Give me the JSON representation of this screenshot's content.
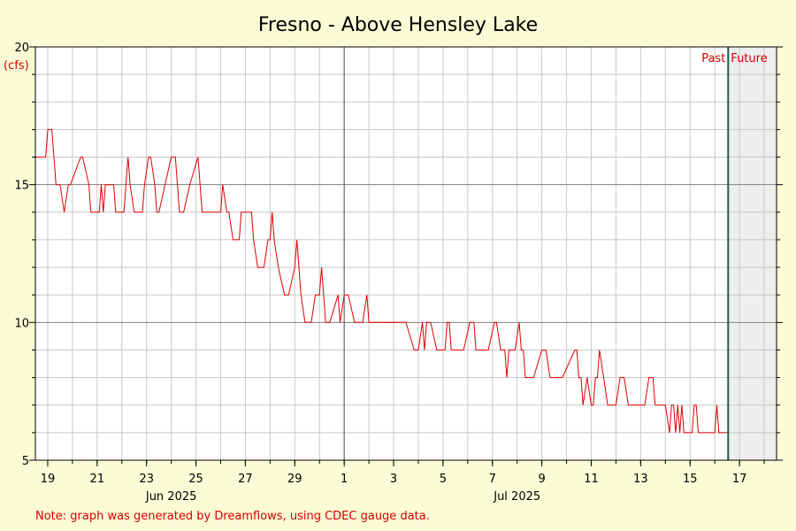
{
  "chart_data": {
    "type": "line",
    "title": "Fresno - Above Hensley Lake",
    "ylabel": "(cfs)",
    "ylim": [
      5,
      20
    ],
    "yticks": [
      5,
      10,
      15,
      20
    ],
    "xlim": [
      "2025-06-18T12:00",
      "2025-07-18T12:00"
    ],
    "xticks": [
      {
        "date": "2025-06-19",
        "label": "19"
      },
      {
        "date": "2025-06-21",
        "label": "21"
      },
      {
        "date": "2025-06-23",
        "label": "23"
      },
      {
        "date": "2025-06-25",
        "label": "25"
      },
      {
        "date": "2025-06-27",
        "label": "27"
      },
      {
        "date": "2025-06-29",
        "label": "29"
      },
      {
        "date": "2025-07-01",
        "label": "1"
      },
      {
        "date": "2025-07-03",
        "label": "3"
      },
      {
        "date": "2025-07-05",
        "label": "5"
      },
      {
        "date": "2025-07-07",
        "label": "7"
      },
      {
        "date": "2025-07-09",
        "label": "9"
      },
      {
        "date": "2025-07-11",
        "label": "11"
      },
      {
        "date": "2025-07-13",
        "label": "13"
      },
      {
        "date": "2025-07-15",
        "label": "15"
      },
      {
        "date": "2025-07-17",
        "label": "17"
      }
    ],
    "month_labels": [
      {
        "date": "2025-06-24",
        "label": "Jun 2025"
      },
      {
        "date": "2025-07-08",
        "label": "Jul 2025"
      }
    ],
    "month_boundary": "2025-06-30T24:00",
    "now": "2025-07-16T13:00",
    "past_label": "Past",
    "future_label": "Future",
    "note": "Note: graph was generated by Dreamflows, using CDEC gauge data.",
    "grid": true,
    "colors": {
      "line": "#dd0000",
      "now_line": "#1f5a4a",
      "future_shade": "#eeeeee",
      "background": "#fbfbd5",
      "grid": "#c8c8c8",
      "note": "#d40000"
    },
    "series": [
      {
        "x": [
          "2025-06-18T12:00",
          "2025-06-18T22:00",
          "2025-06-19T00:00",
          "2025-06-19T04:00",
          "2025-06-19T06:00",
          "2025-06-19T08:00",
          "2025-06-19T12:00",
          "2025-06-19T16:00",
          "2025-06-19T20:00",
          "2025-06-19T22:00",
          "2025-06-20T08:00",
          "2025-06-20T10:00",
          "2025-06-20T16:00",
          "2025-06-20T18:00",
          "2025-06-21T02:00",
          "2025-06-21T04:00",
          "2025-06-21T06:00",
          "2025-06-21T08:00",
          "2025-06-21T16:00",
          "2025-06-21T18:00",
          "2025-06-22T02:00",
          "2025-06-22T04:00",
          "2025-06-22T06:00",
          "2025-06-22T08:00",
          "2025-06-22T12:00",
          "2025-06-22T20:00",
          "2025-06-22T22:00",
          "2025-06-23T02:00",
          "2025-06-23T04:00",
          "2025-06-23T08:00",
          "2025-06-23T10:00",
          "2025-06-23T12:00",
          "2025-06-23T18:00",
          "2025-06-24T00:00",
          "2025-06-24T04:00",
          "2025-06-24T06:00",
          "2025-06-24T08:00",
          "2025-06-24T12:00",
          "2025-06-24T18:00",
          "2025-06-25T02:00",
          "2025-06-25T04:00",
          "2025-06-25T06:00",
          "2025-06-25T08:00",
          "2025-06-25T12:00",
          "2025-06-26T00:00",
          "2025-06-26T02:00",
          "2025-06-26T06:00",
          "2025-06-26T08:00",
          "2025-06-26T12:00",
          "2025-06-26T18:00",
          "2025-06-26T20:00",
          "2025-06-27T04:00",
          "2025-06-27T06:00",
          "2025-06-27T08:00",
          "2025-06-27T12:00",
          "2025-06-27T18:00",
          "2025-06-27T22:00",
          "2025-06-28T00:00",
          "2025-06-28T02:00",
          "2025-06-28T04:00",
          "2025-06-28T08:00",
          "2025-06-28T14:00",
          "2025-06-28T18:00",
          "2025-06-29T00:00",
          "2025-06-29T02:00",
          "2025-06-29T04:00",
          "2025-06-29T06:00",
          "2025-06-29T10:00",
          "2025-06-29T16:00",
          "2025-06-29T20:00",
          "2025-06-30T00:00",
          "2025-06-30T02:00",
          "2025-06-30T04:00",
          "2025-06-30T06:00",
          "2025-06-30T10:00",
          "2025-06-30T18:00",
          "2025-06-30T20:00",
          "2025-07-01T00:00",
          "2025-07-01T04:00",
          "2025-07-01T10:00",
          "2025-07-01T18:00",
          "2025-07-01T22:00",
          "2025-07-02T00:00",
          "2025-07-02T04:00",
          "2025-07-02T10:00",
          "2025-07-02T14:00",
          "2025-07-03T12:00",
          "2025-07-03T20:00",
          "2025-07-04T00:00",
          "2025-07-04T04:00",
          "2025-07-04T06:00",
          "2025-07-04T08:00",
          "2025-07-04T10:00",
          "2025-07-04T12:00",
          "2025-07-04T18:00",
          "2025-07-05T02:00",
          "2025-07-05T04:00",
          "2025-07-05T06:00",
          "2025-07-05T08:00",
          "2025-07-05T12:00",
          "2025-07-05T20:00",
          "2025-07-06T02:00",
          "2025-07-06T04:00",
          "2025-07-06T06:00",
          "2025-07-06T08:00",
          "2025-07-06T12:00",
          "2025-07-06T20:00",
          "2025-07-07T02:00",
          "2025-07-07T04:00",
          "2025-07-07T08:00",
          "2025-07-07T12:00",
          "2025-07-07T14:00",
          "2025-07-07T16:00",
          "2025-07-07T22:00",
          "2025-07-08T02:00",
          "2025-07-08T04:00",
          "2025-07-08T06:00",
          "2025-07-08T08:00",
          "2025-07-08T12:00",
          "2025-07-08T16:00",
          "2025-07-09T00:00",
          "2025-07-09T04:00",
          "2025-07-09T08:00",
          "2025-07-09T12:00",
          "2025-07-09T20:00",
          "2025-07-10T08:00",
          "2025-07-10T10:00",
          "2025-07-10T12:00",
          "2025-07-10T14:00",
          "2025-07-10T16:00",
          "2025-07-10T20:00",
          "2025-07-11T00:00",
          "2025-07-11T02:00",
          "2025-07-11T04:00",
          "2025-07-11T06:00",
          "2025-07-11T08:00",
          "2025-07-11T12:00",
          "2025-07-11T16:00",
          "2025-07-11T20:00",
          "2025-07-12T00:00",
          "2025-07-12T04:00",
          "2025-07-12T08:00",
          "2025-07-12T12:00",
          "2025-07-12T20:00",
          "2025-07-13T00:00",
          "2025-07-13T04:00",
          "2025-07-13T08:00",
          "2025-07-13T12:00",
          "2025-07-13T14:00",
          "2025-07-13T16:00",
          "2025-07-13T18:00",
          "2025-07-14T00:00",
          "2025-07-14T04:00",
          "2025-07-14T06:00",
          "2025-07-14T08:00",
          "2025-07-14T10:00",
          "2025-07-14T12:00",
          "2025-07-14T14:00",
          "2025-07-14T16:00",
          "2025-07-14T18:00",
          "2025-07-15T00:00",
          "2025-07-15T02:00",
          "2025-07-15T04:00",
          "2025-07-15T06:00",
          "2025-07-15T08:00",
          "2025-07-15T12:00",
          "2025-07-15T20:00",
          "2025-07-16T00:00",
          "2025-07-16T02:00",
          "2025-07-16T04:00",
          "2025-07-16T12:00"
        ],
        "values": [
          16,
          16,
          17,
          17,
          16,
          15,
          15,
          14,
          15,
          15,
          16,
          16,
          15,
          14,
          14,
          15,
          14,
          15,
          15,
          14,
          14,
          15,
          16,
          15,
          14,
          14,
          15,
          16,
          16,
          15,
          14,
          14,
          15,
          16,
          16,
          15,
          14,
          14,
          15,
          16,
          15,
          14,
          14,
          14,
          14,
          15,
          14,
          14,
          13,
          13,
          14,
          14,
          14,
          13,
          12,
          12,
          13,
          13,
          14,
          13,
          12,
          11,
          11,
          12,
          13,
          12,
          11,
          10,
          10,
          11,
          11,
          12,
          11,
          10,
          10,
          11,
          10,
          11,
          11,
          10,
          10,
          11,
          10,
          10,
          10,
          10,
          10,
          9,
          9,
          10,
          9,
          10,
          10,
          10,
          9,
          9,
          10,
          10,
          9,
          9,
          9,
          10,
          10,
          10,
          9,
          9,
          9,
          10,
          10,
          9,
          9,
          8,
          9,
          9,
          10,
          9,
          9,
          8,
          8,
          8,
          9,
          9,
          8,
          8,
          8,
          9,
          9,
          8,
          8,
          7,
          8,
          7,
          7,
          8,
          8,
          9,
          8,
          7,
          7,
          7,
          8,
          8,
          7,
          7,
          7,
          7,
          8,
          8,
          7,
          7,
          7,
          7,
          6,
          7,
          7,
          6,
          7,
          6,
          7,
          6,
          6,
          6,
          7,
          7,
          6,
          6,
          6,
          6,
          7,
          6,
          6
        ]
      }
    ]
  }
}
